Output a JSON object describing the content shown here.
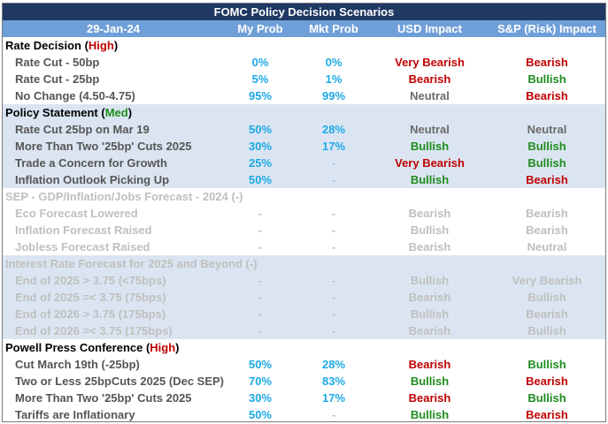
{
  "title": "FOMC Policy Decision Scenarios",
  "header": [
    "29-Jan-24",
    "My Prob",
    "Mkt Prob",
    "USD Impact",
    "S&P (Risk) Impact"
  ],
  "rows": [
    {
      "kind": "section",
      "label": "Rate Decision (",
      "tag": "High",
      "tag_color": "red",
      "close": ")",
      "shade": false,
      "muted": false
    },
    {
      "kind": "item",
      "label": "Rate Cut - 50bp",
      "my": "0%",
      "mkt": "0%",
      "usd": "Very Bearish",
      "usd_c": "red",
      "sp": "Bearish",
      "sp_c": "red",
      "shade": false,
      "muted": false
    },
    {
      "kind": "item",
      "label": "Rate Cut - 25bp",
      "my": "5%",
      "mkt": "1%",
      "usd": "Bearish",
      "usd_c": "red",
      "sp": "Bullish",
      "sp_c": "green",
      "shade": false,
      "muted": false
    },
    {
      "kind": "item",
      "label": "No Change (4.50-4.75)",
      "my": "95%",
      "mkt": "99%",
      "usd": "Neutral",
      "usd_c": "neutral",
      "sp": "Bearish",
      "sp_c": "red",
      "shade": false,
      "muted": false
    },
    {
      "kind": "section",
      "label": "Policy Statement (",
      "tag": "Med",
      "tag_color": "green",
      "close": ")",
      "shade": true,
      "muted": false
    },
    {
      "kind": "item",
      "label": "Rate Cut 25bp on Mar 19",
      "my": "50%",
      "mkt": "28%",
      "usd": "Neutral",
      "usd_c": "neutral",
      "sp": "Neutral",
      "sp_c": "neutral",
      "shade": true,
      "muted": false
    },
    {
      "kind": "item",
      "label": "More Than Two '25bp' Cuts 2025",
      "my": "30%",
      "mkt": "17%",
      "usd": "Bullish",
      "usd_c": "green",
      "sp": "Bullish",
      "sp_c": "green",
      "shade": true,
      "muted": false
    },
    {
      "kind": "item",
      "label": "Trade a Concern for Growth",
      "my": "25%",
      "mkt": "-",
      "usd": "Very Bearish",
      "usd_c": "red",
      "sp": "Bullish",
      "sp_c": "green",
      "shade": true,
      "muted": false
    },
    {
      "kind": "item",
      "label": "Inflation Outlook Picking Up",
      "my": "50%",
      "mkt": "-",
      "usd": "Bullish",
      "usd_c": "green",
      "sp": "Bearish",
      "sp_c": "red",
      "shade": true,
      "muted": false
    },
    {
      "kind": "section",
      "label": "SEP - GDP/Inflation/Jobs Forecast - 2024 (-)",
      "tag": "",
      "tag_color": "",
      "close": "",
      "shade": false,
      "muted": true
    },
    {
      "kind": "item",
      "label": "Eco Forecast Lowered",
      "my": "-",
      "mkt": "-",
      "usd": "Bearish",
      "usd_c": "neutral",
      "sp": "Bearish",
      "sp_c": "neutral",
      "shade": false,
      "muted": true
    },
    {
      "kind": "item",
      "label": "Inflation Forecast Raised",
      "my": "-",
      "mkt": "-",
      "usd": "Bullish",
      "usd_c": "neutral",
      "sp": "Bearish",
      "sp_c": "neutral",
      "shade": false,
      "muted": true
    },
    {
      "kind": "item",
      "label": "Jobless Forecast Raised",
      "my": "-",
      "mkt": "-",
      "usd": "Bearish",
      "usd_c": "neutral",
      "sp": "Neutral",
      "sp_c": "neutral",
      "shade": false,
      "muted": true
    },
    {
      "kind": "section",
      "label": "Interest Rate Forecast for 2025 and Beyond (-)",
      "tag": "",
      "tag_color": "",
      "close": "",
      "shade": true,
      "muted": true
    },
    {
      "kind": "item",
      "label": "End of 2025 > 3.75 (<75bps)",
      "my": "-",
      "mkt": "-",
      "usd": "Bullish",
      "usd_c": "neutral",
      "sp": "Very Bearish",
      "sp_c": "neutral",
      "shade": true,
      "muted": true
    },
    {
      "kind": "item",
      "label": "End of 2025 =< 3.75 (75bps)",
      "my": "-",
      "mkt": "-",
      "usd": "Bearish",
      "usd_c": "neutral",
      "sp": "Bullish",
      "sp_c": "neutral",
      "shade": true,
      "muted": true
    },
    {
      "kind": "item",
      "label": "End of 2026 > 3.75 (175bps)",
      "my": "-",
      "mkt": "-",
      "usd": "Bullish",
      "usd_c": "neutral",
      "sp": "Bearish",
      "sp_c": "neutral",
      "shade": true,
      "muted": true
    },
    {
      "kind": "item",
      "label": "End of 2026 =< 3.75 (175bps)",
      "my": "-",
      "mkt": "-",
      "usd": "Bearish",
      "usd_c": "neutral",
      "sp": "Bullish",
      "sp_c": "neutral",
      "shade": true,
      "muted": true
    },
    {
      "kind": "section",
      "label": "Powell Press Conference (",
      "tag": "High",
      "tag_color": "red",
      "close": ")",
      "shade": false,
      "muted": false
    },
    {
      "kind": "item",
      "label": "Cut March 19th (-25bp)",
      "my": "50%",
      "mkt": "28%",
      "usd": "Bearish",
      "usd_c": "red",
      "sp": "Bullish",
      "sp_c": "green",
      "shade": false,
      "muted": false
    },
    {
      "kind": "item",
      "label": "Two or Less 25bpCuts 2025 (Dec SEP)",
      "my": "70%",
      "mkt": "83%",
      "usd": "Bullish",
      "usd_c": "green",
      "sp": "Bearish",
      "sp_c": "red",
      "shade": false,
      "muted": false
    },
    {
      "kind": "item",
      "label": "More Than Two '25bp' Cuts 2025",
      "my": "30%",
      "mkt": "17%",
      "usd": "Bearish",
      "usd_c": "red",
      "sp": "Bullish",
      "sp_c": "green",
      "shade": false,
      "muted": false
    },
    {
      "kind": "item",
      "label": "Tariffs are Inflationary",
      "my": "50%",
      "mkt": "-",
      "usd": "Bullish",
      "usd_c": "green",
      "sp": "Bearish",
      "sp_c": "red",
      "shade": false,
      "muted": false
    }
  ]
}
